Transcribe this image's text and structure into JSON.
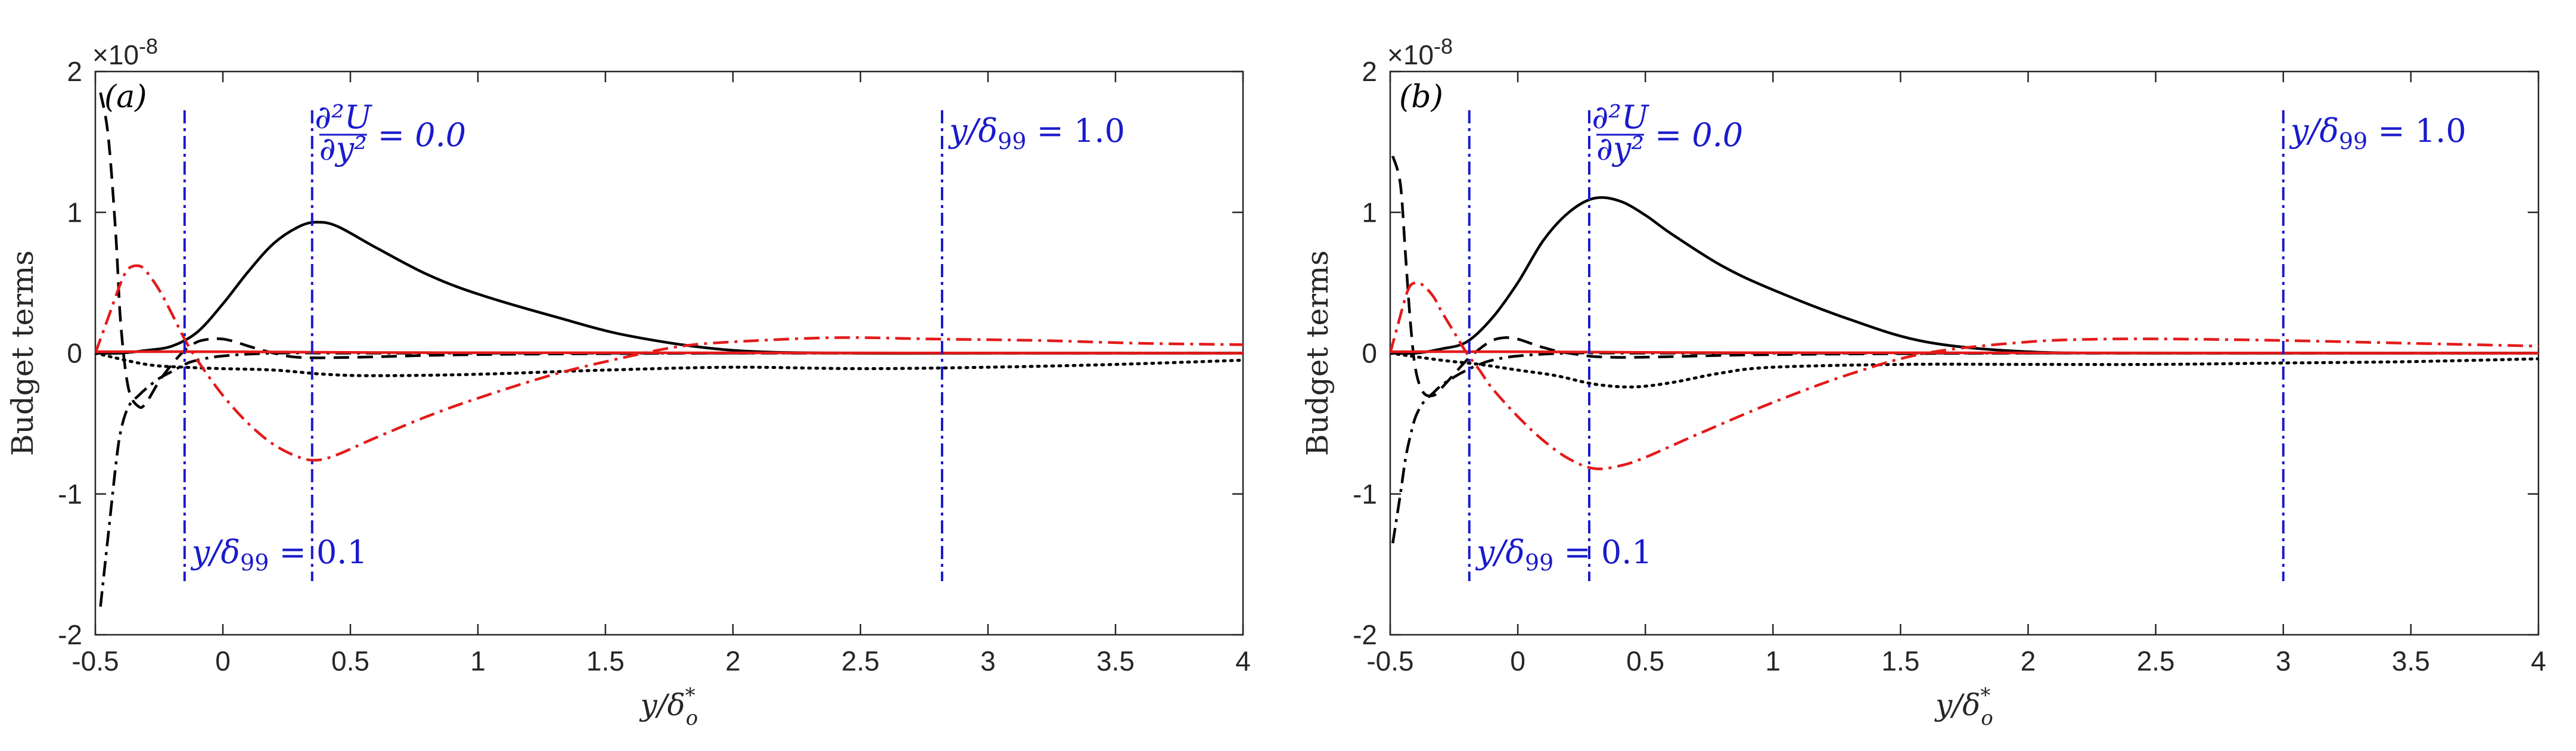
{
  "colors": {
    "black": "#000000",
    "red": "#e41a1a",
    "blue": "#1a1acc",
    "axis": "#262626"
  },
  "chart_data": [
    {
      "type": "line",
      "panel_label": "(a)",
      "xlabel": "y/δ*o",
      "ylabel": "Budget terms",
      "exponent_label": "×10",
      "exponent_power": "-8",
      "xlim": [
        -0.5,
        4
      ],
      "ylim": [
        -2,
        2
      ],
      "xticks": [
        "-0.5",
        "0",
        "0.5",
        "1",
        "1.5",
        "2",
        "2.5",
        "3",
        "3.5",
        "4"
      ],
      "yticks": [
        "-2",
        "-1",
        "0",
        "1",
        "2"
      ],
      "annotations": [
        {
          "name": "annot-d2u-a",
          "text": "∂²U/∂y² = 0.0",
          "x": 0.35
        },
        {
          "name": "annot-y099-01-a",
          "text": "y/δ99 = 0.1",
          "x": -0.15
        },
        {
          "name": "annot-y099-10-a",
          "text": "y/δ99 = 1.0",
          "x": 2.82
        }
      ],
      "vlines": [
        -0.15,
        0.35,
        2.82
      ],
      "series": [
        {
          "name": "black-solid",
          "color": "black",
          "style": "solid",
          "x": [
            -0.5,
            -0.4,
            -0.3,
            -0.2,
            -0.1,
            0,
            0.1,
            0.2,
            0.3,
            0.37,
            0.45,
            0.6,
            0.8,
            1,
            1.3,
            1.6,
            2,
            2.5,
            3,
            3.5,
            4
          ],
          "y": [
            0,
            0,
            0.02,
            0.05,
            0.15,
            0.35,
            0.58,
            0.78,
            0.9,
            0.93,
            0.9,
            0.75,
            0.56,
            0.42,
            0.26,
            0.12,
            0.02,
            0,
            0,
            0,
            0
          ]
        },
        {
          "name": "black-dashed",
          "color": "black",
          "style": "dashed",
          "x": [
            -0.48,
            -0.45,
            -0.42,
            -0.4,
            -0.37,
            -0.33,
            -0.3,
            -0.25,
            -0.2,
            -0.15,
            -0.1,
            -0.05,
            0,
            0.05,
            0.1,
            0.2,
            0.3,
            0.5,
            1,
            2,
            3,
            4
          ],
          "y": [
            1.85,
            1.55,
            0.85,
            0.2,
            -0.25,
            -0.38,
            -0.35,
            -0.2,
            -0.08,
            0.02,
            0.08,
            0.1,
            0.1,
            0.08,
            0.05,
            0,
            -0.03,
            -0.03,
            -0.01,
            0,
            0,
            0
          ]
        },
        {
          "name": "black-dashdot",
          "color": "black",
          "style": "dashdot",
          "x": [
            -0.48,
            -0.45,
            -0.42,
            -0.4,
            -0.37,
            -0.33,
            -0.3,
            -0.25,
            -0.2,
            -0.15,
            -0.1,
            0,
            0.2,
            0.5,
            1,
            2,
            3,
            4
          ],
          "y": [
            -1.8,
            -1.3,
            -0.8,
            -0.55,
            -0.38,
            -0.3,
            -0.25,
            -0.18,
            -0.13,
            -0.08,
            -0.05,
            -0.02,
            0,
            0,
            0,
            0,
            0,
            0
          ]
        },
        {
          "name": "black-dotted",
          "color": "black",
          "style": "dotted",
          "x": [
            -0.5,
            -0.3,
            -0.15,
            0,
            0.2,
            0.4,
            0.6,
            1,
            1.5,
            2,
            2.5,
            3,
            3.5,
            4
          ],
          "y": [
            0,
            -0.08,
            -0.1,
            -0.11,
            -0.12,
            -0.15,
            -0.16,
            -0.15,
            -0.12,
            -0.1,
            -0.11,
            -0.1,
            -0.08,
            -0.05
          ]
        },
        {
          "name": "red-solid",
          "color": "red",
          "style": "solid",
          "x": [
            -0.5,
            0,
            0.5,
            1,
            2,
            3,
            4
          ],
          "y": [
            0.01,
            0.01,
            0.005,
            0.003,
            0.002,
            0.001,
            0
          ]
        },
        {
          "name": "red-dashdot",
          "color": "red",
          "style": "dashdot",
          "x": [
            -0.5,
            -0.45,
            -0.4,
            -0.37,
            -0.33,
            -0.3,
            -0.25,
            -0.2,
            -0.15,
            -0.1,
            0,
            0.1,
            0.2,
            0.3,
            0.37,
            0.45,
            0.6,
            0.8,
            1,
            1.3,
            1.6,
            1.8,
            2,
            2.4,
            2.8,
            3.2,
            3.6,
            4
          ],
          "y": [
            0,
            0.25,
            0.5,
            0.6,
            0.62,
            0.58,
            0.45,
            0.28,
            0.1,
            -0.05,
            -0.3,
            -0.5,
            -0.65,
            -0.74,
            -0.76,
            -0.72,
            -0.6,
            -0.45,
            -0.32,
            -0.15,
            -0.02,
            0.05,
            0.08,
            0.11,
            0.1,
            0.09,
            0.07,
            0.06
          ]
        }
      ]
    },
    {
      "type": "line",
      "panel_label": "(b)",
      "xlabel": "y/δ*o",
      "ylabel": "Budget terms",
      "exponent_label": "×10",
      "exponent_power": "-8",
      "xlim": [
        -0.5,
        4
      ],
      "ylim": [
        -2,
        2
      ],
      "xticks": [
        "-0.5",
        "0",
        "0.5",
        "1",
        "1.5",
        "2",
        "2.5",
        "3",
        "3.5",
        "4"
      ],
      "yticks": [
        "-2",
        "-1",
        "0",
        "1",
        "2"
      ],
      "annotations": [
        {
          "name": "annot-d2u-b",
          "text": "∂²U/∂y² = 0.0",
          "x": 0.28
        },
        {
          "name": "annot-y099-01-b",
          "text": "y/δ99 = 0.1",
          "x": -0.19
        },
        {
          "name": "annot-y099-10-b",
          "text": "y/δ99 = 1.0",
          "x": 3.0
        }
      ],
      "vlines": [
        -0.19,
        0.28,
        3.0
      ],
      "series": [
        {
          "name": "black-solid",
          "color": "black",
          "style": "solid",
          "x": [
            -0.5,
            -0.4,
            -0.3,
            -0.2,
            -0.1,
            0,
            0.1,
            0.2,
            0.3,
            0.4,
            0.5,
            0.6,
            0.8,
            1,
            1.3,
            1.6,
            2,
            2.5,
            3,
            3.5,
            4
          ],
          "y": [
            0,
            0,
            0.03,
            0.08,
            0.25,
            0.5,
            0.8,
            1.0,
            1.1,
            1.08,
            0.98,
            0.85,
            0.62,
            0.45,
            0.24,
            0.08,
            0.01,
            0,
            0,
            0,
            0
          ]
        },
        {
          "name": "black-dashed",
          "color": "black",
          "style": "dashed",
          "x": [
            -0.49,
            -0.46,
            -0.44,
            -0.42,
            -0.4,
            -0.37,
            -0.33,
            -0.3,
            -0.25,
            -0.2,
            -0.15,
            -0.1,
            -0.05,
            0,
            0.05,
            0.1,
            0.2,
            0.4,
            1,
            2,
            3,
            4
          ],
          "y": [
            1.4,
            1.2,
            0.7,
            0.2,
            -0.12,
            -0.28,
            -0.3,
            -0.25,
            -0.15,
            -0.05,
            0.03,
            0.09,
            0.11,
            0.1,
            0.07,
            0.04,
            0,
            -0.03,
            -0.01,
            0,
            0,
            0
          ]
        },
        {
          "name": "black-dashdot",
          "color": "black",
          "style": "dashdot",
          "x": [
            -0.49,
            -0.46,
            -0.44,
            -0.42,
            -0.4,
            -0.37,
            -0.33,
            -0.3,
            -0.25,
            -0.2,
            -0.15,
            -0.1,
            0,
            0.2,
            0.5,
            1,
            2,
            3,
            4
          ],
          "y": [
            -1.35,
            -1.0,
            -0.75,
            -0.58,
            -0.45,
            -0.35,
            -0.28,
            -0.23,
            -0.17,
            -0.12,
            -0.08,
            -0.05,
            -0.02,
            0,
            0,
            0,
            0,
            0,
            0
          ]
        },
        {
          "name": "black-dotted",
          "color": "black",
          "style": "dotted",
          "x": [
            -0.5,
            -0.3,
            -0.15,
            0,
            0.15,
            0.3,
            0.45,
            0.6,
            0.8,
            1,
            1.5,
            2,
            2.5,
            3,
            3.5,
            4
          ],
          "y": [
            0,
            -0.05,
            -0.08,
            -0.12,
            -0.16,
            -0.22,
            -0.24,
            -0.21,
            -0.14,
            -0.1,
            -0.08,
            -0.08,
            -0.08,
            -0.07,
            -0.06,
            -0.04
          ]
        },
        {
          "name": "red-solid",
          "color": "red",
          "style": "solid",
          "x": [
            -0.5,
            0,
            0.5,
            1,
            2,
            3,
            4
          ],
          "y": [
            0.01,
            0.01,
            0.005,
            0.003,
            0.002,
            0.001,
            0
          ]
        },
        {
          "name": "red-dashdot",
          "color": "red",
          "style": "dashdot",
          "x": [
            -0.5,
            -0.47,
            -0.43,
            -0.4,
            -0.37,
            -0.33,
            -0.3,
            -0.25,
            -0.2,
            -0.15,
            -0.1,
            0,
            0.1,
            0.2,
            0.3,
            0.4,
            0.5,
            0.7,
            1,
            1.3,
            1.6,
            2,
            2.3,
            2.6,
            3,
            3.5,
            4
          ],
          "y": [
            0,
            0.2,
            0.45,
            0.5,
            0.48,
            0.4,
            0.3,
            0.15,
            0,
            -0.12,
            -0.25,
            -0.45,
            -0.62,
            -0.75,
            -0.82,
            -0.8,
            -0.74,
            -0.58,
            -0.35,
            -0.15,
            0,
            0.08,
            0.1,
            0.1,
            0.09,
            0.07,
            0.05
          ]
        }
      ]
    }
  ]
}
